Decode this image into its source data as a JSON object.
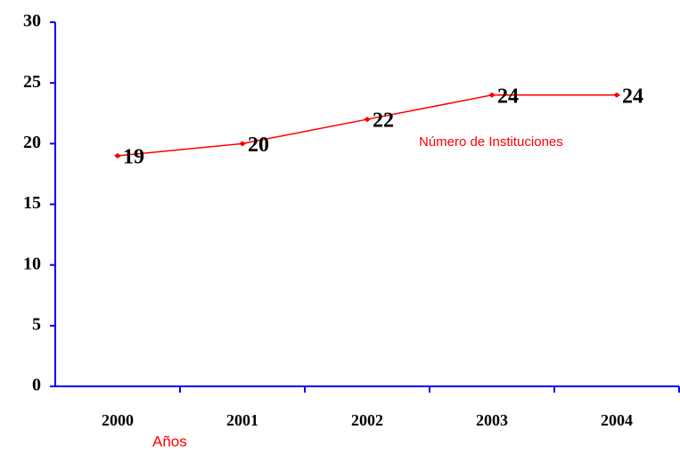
{
  "chart_data": {
    "type": "line",
    "x_label": "Años",
    "categories": [
      "2000",
      "2001",
      "2002",
      "2003",
      "2004"
    ],
    "series": [
      {
        "name": "Número de Instituciones",
        "color": "#ff0000",
        "values": [
          19,
          20,
          22,
          24,
          24
        ]
      }
    ],
    "ylim": [
      0,
      30
    ],
    "yticks": [
      0,
      5,
      10,
      15,
      20,
      25,
      30
    ],
    "axis_color": "#0000ff"
  }
}
